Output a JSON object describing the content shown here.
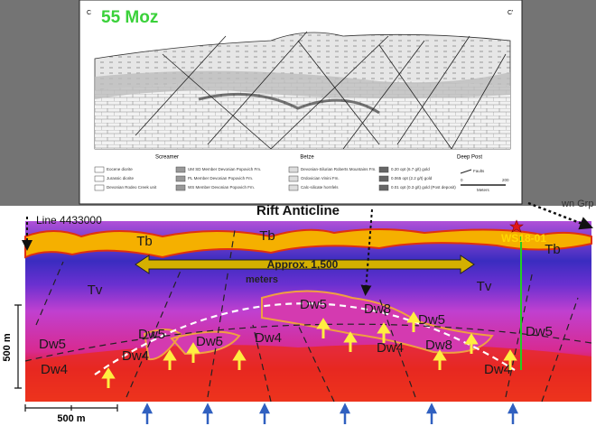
{
  "top_panel": {
    "title": "55 Moz",
    "section_start": "C",
    "section_end": "C'",
    "places": [
      "Screamer",
      "Betze",
      "Deep Post"
    ],
    "legend": [
      "Eocene diorite",
      "Jurassic diorite",
      "Devonian Rodeo Creek unit",
      "UM SD Member Devonian Popovich Fm.",
      "PL Member Devonian Popovich Fm.",
      "WS Member Devonian Popovich Fm.",
      "Devonian-Silurian Roberts Mountains Fm.",
      "Ordovician Vinini Fm.",
      "Calc-silicate hornfels",
      "0.20 opt (6.7 g/t) gold",
      "0.065 opt (2.2 g/t) gold",
      "0.01 opt (0.3 g/t) gold (Post deposit)",
      "Faults",
      "0",
      "200",
      "Meters"
    ]
  },
  "section": {
    "line_label": "Line 4433000",
    "title": "Rift Anticline",
    "corner_label": "wn Grp",
    "drillhole": "WS18-01",
    "width_label": "Approx. 1,500",
    "width_unit": "meters",
    "unit_labels": [
      "Tb",
      "Tb",
      "Tb",
      "Tv",
      "Tv",
      "Dw5",
      "Dw5",
      "Dw5",
      "Dw5",
      "Dw5",
      "Dw5",
      "Dw8",
      "Dw8",
      "Dw4",
      "Dw4",
      "Dw4",
      "Dw4",
      "Dw4"
    ],
    "vertical_scale": "500 m",
    "horizontal_scale": "500 m"
  }
}
